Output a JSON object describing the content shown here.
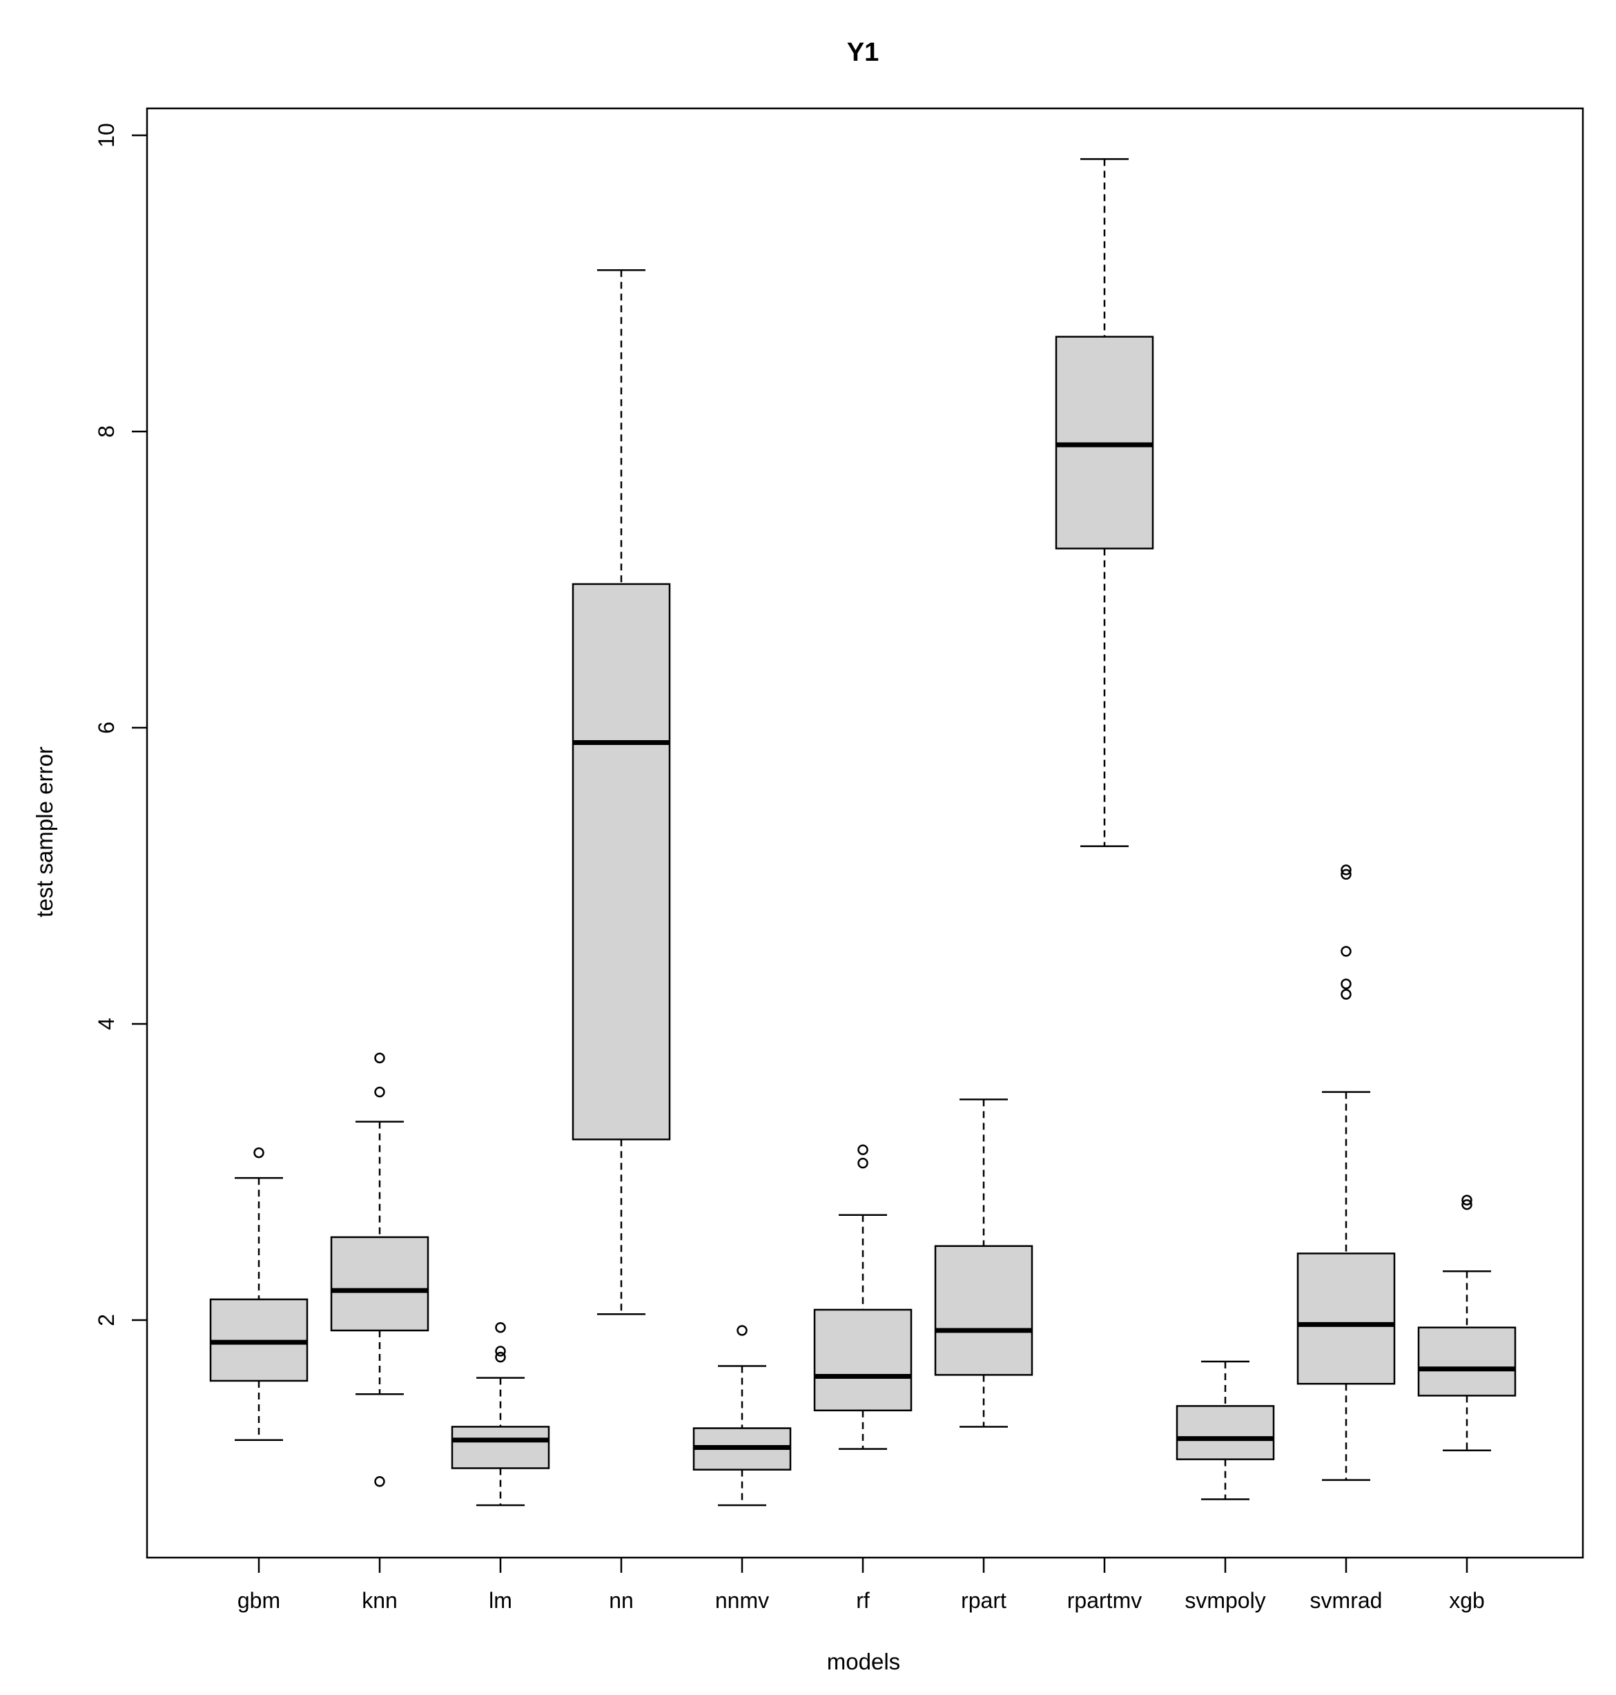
{
  "chart_data": {
    "type": "boxplot",
    "title": "Y1",
    "xlabel": "models",
    "ylabel": "test sample error",
    "ylim": [
      0.4,
      10.2
    ],
    "yticks": [
      2,
      4,
      6,
      8,
      10
    ],
    "box_fill": "#d3d3d3",
    "categories": [
      "gbm",
      "knn",
      "lm",
      "nn",
      "nnmv",
      "rf",
      "rpart",
      "rpartmv",
      "svmpoly",
      "svmrad",
      "xgb"
    ],
    "boxes": [
      {
        "name": "gbm",
        "whisker_low": 1.19,
        "q1": 1.59,
        "median": 1.85,
        "q3": 2.14,
        "whisker_high": 2.96,
        "outliers": [
          3.13
        ]
      },
      {
        "name": "knn",
        "whisker_low": 1.5,
        "q1": 1.93,
        "median": 2.2,
        "q3": 2.56,
        "whisker_high": 3.34,
        "outliers": [
          0.91,
          3.54,
          3.77
        ]
      },
      {
        "name": "lm",
        "whisker_low": 0.75,
        "q1": 1.0,
        "median": 1.19,
        "q3": 1.28,
        "whisker_high": 1.61,
        "outliers": [
          1.75,
          1.79,
          1.95
        ]
      },
      {
        "name": "nn",
        "whisker_low": 2.04,
        "q1": 3.22,
        "median": 5.9,
        "q3": 6.97,
        "whisker_high": 9.09,
        "outliers": []
      },
      {
        "name": "nnmv",
        "whisker_low": 0.75,
        "q1": 0.99,
        "median": 1.14,
        "q3": 1.27,
        "whisker_high": 1.69,
        "outliers": [
          1.93
        ]
      },
      {
        "name": "rf",
        "whisker_low": 1.13,
        "q1": 1.39,
        "median": 1.62,
        "q3": 2.07,
        "whisker_high": 2.71,
        "outliers": [
          3.06,
          3.15
        ]
      },
      {
        "name": "rpart",
        "whisker_low": 1.28,
        "q1": 1.63,
        "median": 1.93,
        "q3": 2.5,
        "whisker_high": 3.49,
        "outliers": []
      },
      {
        "name": "rpartmv",
        "whisker_low": 5.2,
        "q1": 7.21,
        "median": 7.91,
        "q3": 8.64,
        "whisker_high": 9.84,
        "outliers": []
      },
      {
        "name": "svmpoly",
        "whisker_low": 0.79,
        "q1": 1.06,
        "median": 1.2,
        "q3": 1.42,
        "whisker_high": 1.72,
        "outliers": []
      },
      {
        "name": "svmrad",
        "whisker_low": 0.92,
        "q1": 1.57,
        "median": 1.97,
        "q3": 2.45,
        "whisker_high": 3.54,
        "outliers": [
          4.2,
          4.27,
          4.49,
          5.01,
          5.04
        ]
      },
      {
        "name": "xgb",
        "whisker_low": 1.12,
        "q1": 1.49,
        "median": 1.67,
        "q3": 1.95,
        "whisker_high": 2.33,
        "outliers": [
          2.78,
          2.81
        ]
      }
    ]
  }
}
